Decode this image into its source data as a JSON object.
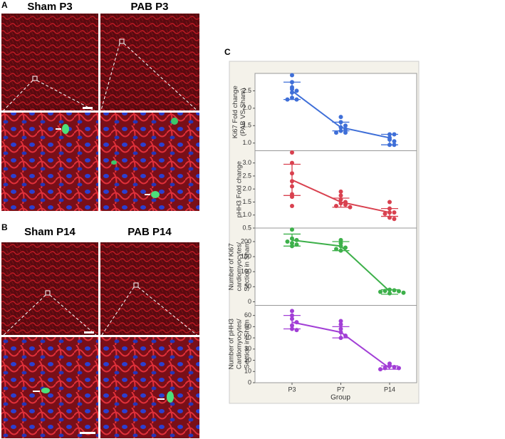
{
  "image_panels": [
    {
      "label": "A",
      "titles": [
        "Sham P3",
        "PAB  P3"
      ]
    },
    {
      "label": "B",
      "titles": [
        "Sham P14",
        "PAB P14"
      ]
    }
  ],
  "chart_data": {
    "type": "dotplot",
    "panel_label": "C",
    "categories": [
      "P3",
      "P7",
      "P14"
    ],
    "xlabel": "Group",
    "panels": [
      {
        "ylabel": [
          "Ki67 Fold change",
          "(PAB VS Sham)"
        ],
        "color": "#3f6fd8",
        "ylim": [
          0.78,
          3.0
        ],
        "yticks": [
          {
            "value": 1,
            "label": "1.0"
          },
          1.5,
          {
            "value": 2,
            "label": "2.0"
          },
          2.5
        ],
        "means": [
          2.5,
          1.45,
          1.15
        ],
        "err_low": [
          2.25,
          1.35,
          0.95
        ],
        "err_high": [
          2.75,
          1.6,
          1.25
        ],
        "points": [
          [
            2.95,
            2.75,
            2.6,
            2.55,
            2.5,
            2.45,
            2.3,
            2.25,
            2.25
          ],
          [
            1.75,
            1.6,
            1.5,
            1.45,
            1.4,
            1.35,
            1.3,
            1.3
          ],
          [
            1.25,
            1.25,
            1.15,
            1.1,
            1.05,
            0.95,
            0.95
          ]
        ]
      },
      {
        "ylabel": [
          "pHH3 Fold change"
        ],
        "color": "#d9414f",
        "ylim": [
          0.5,
          3.47
        ],
        "yticks": [
          0.5,
          {
            "value": 1,
            "label": "1.0"
          },
          1.5,
          {
            "value": 2,
            "label": "2.0"
          },
          2.5,
          {
            "value": 3,
            "label": "3.0"
          }
        ],
        "means": [
          2.35,
          1.5,
          1.1
        ],
        "err_low": [
          1.75,
          1.3,
          0.95
        ],
        "err_high": [
          2.95,
          1.65,
          1.25
        ],
        "points": [
          [
            3.4,
            3.0,
            2.6,
            2.3,
            2.1,
            1.8,
            1.7,
            1.35
          ],
          [
            1.9,
            1.75,
            1.6,
            1.5,
            1.45,
            1.4,
            1.35,
            1.3
          ],
          [
            1.5,
            1.25,
            1.1,
            1.1,
            1.05,
            0.9,
            0.85
          ]
        ]
      },
      {
        "ylabel": [
          "Number of Ki67",
          "cardiomyocytes/",
          "Section in Sham"
        ],
        "color": "#3db04a",
        "ylim": [
          -12,
          245
        ],
        "yticks": [
          0,
          50,
          100,
          150,
          200
        ],
        "means": [
          205,
          185,
          35
        ],
        "err_low": [
          185,
          170,
          25
        ],
        "err_high": [
          225,
          200,
          40
        ],
        "points": [
          [
            240,
            210,
            205,
            200,
            195,
            190,
            185
          ],
          [
            205,
            195,
            185,
            180,
            175,
            170
          ],
          [
            40,
            38,
            36,
            35,
            33,
            30,
            28
          ]
        ]
      },
      {
        "ylabel": [
          "Number of pHH3",
          "Cardiomyocytes/",
          "Section in Sham"
        ],
        "color": "#a23fd6",
        "ylim": [
          0,
          69
        ],
        "yticks": [
          0,
          10,
          20,
          30,
          40,
          50,
          60
        ],
        "means": [
          54,
          45,
          13
        ],
        "err_low": [
          48,
          40,
          12
        ],
        "err_high": [
          60,
          50,
          15
        ],
        "points": [
          [
            64,
            60,
            57,
            54,
            51,
            48,
            47
          ],
          [
            55,
            52,
            48,
            45,
            42,
            40
          ],
          [
            17,
            15,
            14,
            13,
            13,
            12
          ]
        ]
      }
    ]
  }
}
